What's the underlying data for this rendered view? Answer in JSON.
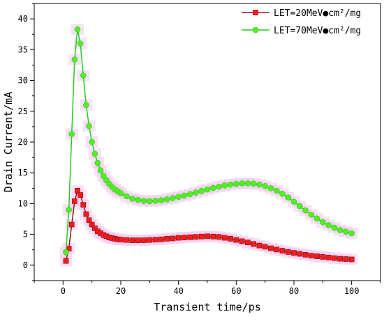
{
  "chart_data": {
    "type": "line",
    "title": "",
    "xlabel": "Transient time/ps",
    "ylabel": "Drain Current/mA",
    "xlim": [
      -10,
      110
    ],
    "ylim": [
      -2.5,
      42.5
    ],
    "xticks": [
      0,
      20,
      40,
      60,
      80,
      100
    ],
    "yticks": [
      0,
      5,
      10,
      15,
      20,
      25,
      30,
      35,
      40
    ],
    "grid": false,
    "legend_position": "top-right",
    "series": [
      {
        "name": "LET=20MeV●cm²/mg",
        "color": "#ff1a1a",
        "line_color": "#8a1a1a",
        "marker": "square",
        "x": [
          1,
          2,
          3,
          4,
          5,
          6,
          7,
          8,
          9,
          10,
          11,
          12,
          13,
          14,
          15,
          16,
          17,
          18,
          19,
          20,
          22,
          24,
          26,
          28,
          30,
          32,
          34,
          36,
          38,
          40,
          42,
          44,
          46,
          48,
          50,
          52,
          54,
          56,
          58,
          60,
          62,
          64,
          66,
          68,
          70,
          72,
          74,
          76,
          78,
          80,
          82,
          84,
          86,
          88,
          90,
          92,
          94,
          96,
          98,
          100
        ],
        "y": [
          0.7,
          2.7,
          6.6,
          10.4,
          12.1,
          11.4,
          9.8,
          8.3,
          7.3,
          6.6,
          6.0,
          5.5,
          5.2,
          4.9,
          4.7,
          4.5,
          4.4,
          4.3,
          4.2,
          4.15,
          4.1,
          4.05,
          4.05,
          4.05,
          4.1,
          4.15,
          4.2,
          4.3,
          4.35,
          4.45,
          4.5,
          4.55,
          4.6,
          4.65,
          4.7,
          4.65,
          4.6,
          4.45,
          4.3,
          4.1,
          3.9,
          3.7,
          3.45,
          3.2,
          3.0,
          2.75,
          2.55,
          2.35,
          2.15,
          2.0,
          1.85,
          1.7,
          1.55,
          1.45,
          1.35,
          1.25,
          1.15,
          1.05,
          1.0,
          0.95
        ]
      },
      {
        "name": "LET=70MeV●cm²/mg",
        "color": "#55ee22",
        "line_color": "#22cc22",
        "marker": "circle",
        "x": [
          1,
          2,
          3,
          4,
          5,
          6,
          7,
          8,
          9,
          10,
          11,
          12,
          13,
          14,
          15,
          16,
          17,
          18,
          19,
          20,
          22,
          24,
          26,
          28,
          30,
          32,
          34,
          36,
          38,
          40,
          42,
          44,
          46,
          48,
          50,
          52,
          54,
          56,
          58,
          60,
          62,
          64,
          66,
          68,
          70,
          72,
          74,
          76,
          78,
          80,
          82,
          84,
          86,
          88,
          90,
          92,
          94,
          96,
          98,
          100
        ],
        "y": [
          2.1,
          9.0,
          21.3,
          33.4,
          38.3,
          36.0,
          30.8,
          26.0,
          22.6,
          20.0,
          18.1,
          16.6,
          15.4,
          14.5,
          13.8,
          13.2,
          12.7,
          12.3,
          12.0,
          11.7,
          11.2,
          10.8,
          10.6,
          10.45,
          10.4,
          10.45,
          10.55,
          10.7,
          10.9,
          11.1,
          11.3,
          11.55,
          11.8,
          12.05,
          12.3,
          12.55,
          12.75,
          12.95,
          13.1,
          13.2,
          13.3,
          13.3,
          13.25,
          13.1,
          12.85,
          12.5,
          12.1,
          11.6,
          11.0,
          10.3,
          9.6,
          8.9,
          8.2,
          7.6,
          7.0,
          6.5,
          6.1,
          5.7,
          5.45,
          5.2
        ]
      }
    ]
  }
}
